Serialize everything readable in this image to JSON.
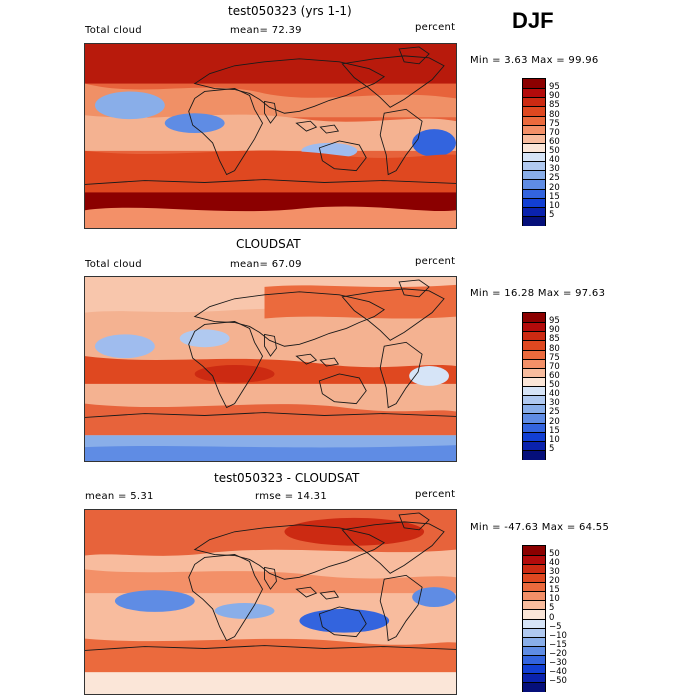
{
  "header": {
    "season": "DJF"
  },
  "panels": [
    {
      "id": "model",
      "title": "test050323 (yrs 1-1)",
      "left_label": "Total cloud",
      "mid_label": "mean=  72.39",
      "right_label": "percent",
      "minmax": "Min =   3.63 Max =  99.96",
      "colorbar": {
        "labels": [
          "95",
          "90",
          "85",
          "80",
          "75",
          "70",
          "60",
          "50",
          "40",
          "30",
          "25",
          "20",
          "15",
          "10",
          "5"
        ],
        "colors": [
          "#8b0000",
          "#b30b0b",
          "#cc2a12",
          "#df4820",
          "#eb6a3d",
          "#f39068",
          "#f8bc9e",
          "#fbe6d8",
          "#d6e4f7",
          "#b0c9f0",
          "#89aee9",
          "#5f8ce4",
          "#3364de",
          "#123fd3",
          "#0a22ad",
          "#050f7a"
        ]
      }
    },
    {
      "id": "obs",
      "title": "CLOUDSAT",
      "left_label": "Total cloud",
      "mid_label": "mean=  67.09",
      "right_label": "percent",
      "minmax": "Min =  16.28 Max =  97.63",
      "colorbar": {
        "labels": [
          "95",
          "90",
          "85",
          "80",
          "75",
          "70",
          "60",
          "50",
          "40",
          "30",
          "25",
          "20",
          "15",
          "10",
          "5"
        ],
        "colors": [
          "#8b0000",
          "#b30b0b",
          "#cc2a12",
          "#df4820",
          "#eb6a3d",
          "#f39068",
          "#f8bc9e",
          "#fbe6d8",
          "#d6e4f7",
          "#b0c9f0",
          "#89aee9",
          "#5f8ce4",
          "#3364de",
          "#123fd3",
          "#0a22ad",
          "#050f7a"
        ]
      }
    },
    {
      "id": "diff",
      "title": "test050323 - CLOUDSAT",
      "left_label": "mean =   5.31",
      "mid_label": "rmse =  14.31",
      "right_label": "percent",
      "minmax": "Min = -47.63 Max =  64.55",
      "colorbar": {
        "labels": [
          "50",
          "40",
          "30",
          "20",
          "15",
          "10",
          "5",
          "0",
          "−5",
          "−10",
          "−15",
          "−20",
          "−30",
          "−40",
          "−50"
        ],
        "colors": [
          "#8b0000",
          "#b30b0b",
          "#cc2a12",
          "#df4820",
          "#eb6a3d",
          "#f39068",
          "#f8bc9e",
          "#fbe6d8",
          "#d6e4f7",
          "#b0c9f0",
          "#89aee9",
          "#5f8ce4",
          "#3364de",
          "#123fd3",
          "#0a22ad",
          "#050f7a"
        ]
      }
    }
  ]
}
